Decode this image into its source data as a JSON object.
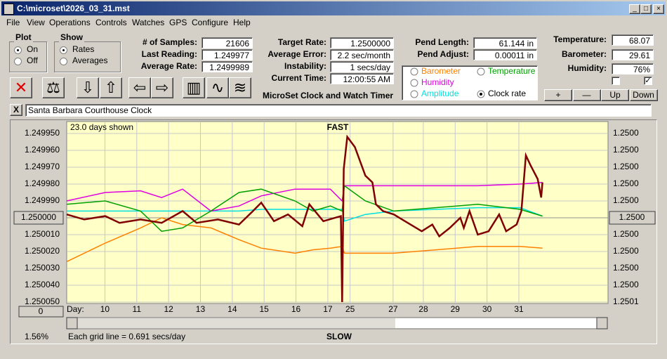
{
  "window": {
    "title": "C:\\microset\\2026_03_31.mst"
  },
  "menu": [
    "File",
    "View",
    "Operations",
    "Controls",
    "Watches",
    "GPS",
    "Configure",
    "Help"
  ],
  "plot_group": {
    "title": "Plot",
    "options": [
      "On",
      "Off"
    ]
  },
  "show_group": {
    "title": "Show",
    "options": [
      "Rates",
      "Averages"
    ]
  },
  "stats": [
    {
      "label": "# of Samples:",
      "value": "21606"
    },
    {
      "label": "Last Reading:",
      "value": "1.249977"
    },
    {
      "label": "Average Rate:",
      "value": "1.2499989"
    }
  ],
  "rates": [
    {
      "label": "Target Rate:",
      "value": "1.2500000"
    },
    {
      "label": "Average Error:",
      "value": "2.2 sec/month"
    },
    {
      "label": "Instability:",
      "value": "1 secs/day"
    },
    {
      "label": "Current Time:",
      "value": "12:00:55 AM"
    }
  ],
  "app_name": "MicroSet Clock and Watch Timer",
  "pendulum": [
    {
      "label": "Pend Length:",
      "value": "61.144 in"
    },
    {
      "label": "Pend Adjust:",
      "value": "0.00011 in"
    }
  ],
  "environment": [
    {
      "label": "Temperature:",
      "value": "68.07"
    },
    {
      "label": "Barometer:",
      "value": "29.61"
    },
    {
      "label": "Humidity:",
      "value": "76%"
    }
  ],
  "adjust_buttons": [
    "+",
    "—",
    "Up",
    "Down"
  ],
  "clock": {
    "close": "X",
    "name": "Santa Barbara Courthouse Clock"
  },
  "chart_data": {
    "type": "line",
    "days_shown": "23.0 days shown",
    "top_label": "FAST",
    "bottom_label": "SLOW",
    "x_label": "Day:",
    "grid_note": "Each grid line = 0.691 secs/day",
    "percent": "1.56%",
    "scroll_button": "0",
    "grid": true,
    "inverted": true,
    "xlim": [
      8.8,
      25.8
    ],
    "xticks": [
      10,
      11,
      12,
      13,
      14,
      15,
      16,
      17,
      {
        "value": 17.7,
        "label": "25"
      },
      {
        "value": 19.05,
        "label": "27"
      },
      {
        "value": 20,
        "label": "28"
      },
      {
        "value": 21,
        "label": "29"
      },
      {
        "value": 22,
        "label": "30"
      },
      {
        "value": 23,
        "label": "31"
      }
    ],
    "ylim": [
      1.24995,
      1.25005
    ],
    "yticks": [
      {
        "value": 1.24995,
        "label": "1.249950"
      },
      {
        "value": 1.24996,
        "label": "1.249960"
      },
      {
        "value": 1.24997,
        "label": "1.249970"
      },
      {
        "value": 1.24998,
        "label": "1.249980"
      },
      {
        "value": 1.24999,
        "label": "1.249990"
      },
      {
        "value": 1.25,
        "label": "1.250000"
      },
      {
        "value": 1.25001,
        "label": "1.250010"
      },
      {
        "value": 1.25002,
        "label": "1.250020"
      },
      {
        "value": 1.25003,
        "label": "1.250030"
      },
      {
        "value": 1.25004,
        "label": "1.250040"
      },
      {
        "value": 1.25005,
        "label": "1.250050"
      }
    ],
    "y2lim": [
      1.24995,
      1.25005
    ],
    "y2ticks": [
      {
        "value": 1.24995,
        "label": "1.2500"
      },
      {
        "value": 1.24996,
        "label": "1.2500"
      },
      {
        "value": 1.24997,
        "label": "1.2500"
      },
      {
        "value": 1.24998,
        "label": "1.2500"
      },
      {
        "value": 1.24999,
        "label": "1.2500"
      },
      {
        "value": 1.25,
        "label": "1.2500"
      },
      {
        "value": 1.25001,
        "label": "1.2500"
      },
      {
        "value": 1.25002,
        "label": "1.2500"
      },
      {
        "value": 1.25003,
        "label": "1.2500"
      },
      {
        "value": 1.25004,
        "label": "1.2500"
      },
      {
        "value": 1.25005,
        "label": "1.2501"
      }
    ],
    "series": [
      {
        "name": "Clock rate",
        "color": "#800000",
        "x": [
          8.8,
          9.35,
          10.01,
          10.46,
          11.12,
          11.78,
          12.44,
          12.88,
          13.55,
          14.21,
          14.65,
          14.91,
          15.31,
          15.75,
          16.2,
          16.42,
          16.86,
          17.41,
          17.45,
          17.5,
          17.61,
          17.85,
          18.18,
          18.4,
          18.51,
          18.73,
          19.07,
          19.51,
          19.95,
          20.28,
          20.5,
          20.83,
          21.16,
          21.27,
          21.45,
          21.71,
          22.05,
          22.38,
          22.6,
          22.93,
          23.08,
          23.22,
          23.37,
          23.59,
          23.7,
          23.74
        ],
        "values": [
          1.249998,
          1.250001,
          1.249999,
          1.250003,
          1.250001,
          1.250003,
          1.249996,
          1.250003,
          1.250001,
          1.250004,
          1.249996,
          1.249991,
          1.250002,
          1.249998,
          1.250005,
          1.249992,
          1.250002,
          1.249999,
          1.25005,
          1.249971,
          1.249952,
          1.249958,
          1.249975,
          1.249979,
          1.249992,
          1.249996,
          1.249998,
          1.250003,
          1.250008,
          1.250004,
          1.250011,
          1.250006,
          1.25,
          1.250006,
          1.249996,
          1.25001,
          1.250008,
          1.249998,
          1.250008,
          1.250004,
          1.249996,
          1.249963,
          1.249969,
          1.249977,
          1.249988,
          1.249979
        ]
      },
      {
        "name": "Temperature",
        "color": "#00a000",
        "x": [
          8.8,
          10.01,
          11.12,
          11.78,
          12.44,
          13.33,
          14.21,
          14.91,
          15.97,
          16.53,
          17.08,
          17.45,
          17.52,
          18.18,
          19.07,
          20.39,
          21.71,
          23.04,
          23.74
        ],
        "values": [
          1.249992,
          1.24999,
          1.249996,
          1.250008,
          1.250006,
          1.249996,
          1.249985,
          1.249983,
          1.24999,
          1.249996,
          1.249993,
          1.249996,
          1.249981,
          1.24999,
          1.249996,
          1.249994,
          1.249992,
          1.249995,
          1.249999
        ]
      },
      {
        "name": "Humidity",
        "color": "#e000e0",
        "x": [
          8.8,
          10.01,
          11.12,
          11.78,
          12.44,
          13.33,
          14.21,
          14.91,
          15.97,
          16.53,
          17.08,
          17.45,
          17.52,
          18.18,
          19.07,
          20.39,
          21.71,
          23.04,
          23.74
        ],
        "values": [
          1.24999,
          1.249985,
          1.249984,
          1.249988,
          1.249983,
          1.249996,
          1.249993,
          1.249987,
          1.249983,
          1.249983,
          1.249983,
          1.24999,
          1.249981,
          1.249981,
          1.249981,
          1.249981,
          1.249981,
          1.24998,
          1.249979
        ]
      },
      {
        "name": "Amplitude",
        "color": "#00e0e0",
        "x": [
          8.8,
          10.01,
          11.12,
          11.78,
          12.44,
          13.33,
          14.21,
          14.91,
          15.97,
          16.53,
          17.08,
          17.45,
          17.52,
          18.18,
          19.07,
          20.39,
          21.71,
          23.04,
          23.74
        ],
        "values": [
          1.249996,
          1.249996,
          1.249996,
          1.249996,
          1.249996,
          1.249996,
          1.249996,
          1.249995,
          1.249995,
          1.249995,
          1.249995,
          1.249995,
          1.250002,
          1.249998,
          1.249996,
          1.249995,
          1.249994,
          1.249994,
          1.249999
        ]
      },
      {
        "name": "Barometer",
        "color": "#ff8000",
        "x": [
          8.8,
          10.01,
          11.12,
          11.78,
          12.44,
          13.33,
          14.21,
          14.91,
          15.97,
          16.53,
          17.08,
          17.45,
          17.52,
          18.18,
          19.07,
          20.39,
          21.71,
          23.04,
          23.74
        ],
        "values": [
          1.250026,
          1.250015,
          1.250006,
          1.25,
          1.250004,
          1.250006,
          1.250013,
          1.250018,
          1.250021,
          1.250019,
          1.250018,
          1.250017,
          1.250021,
          1.250021,
          1.250021,
          1.250019,
          1.250017,
          1.250017,
          1.250018
        ]
      }
    ]
  }
}
